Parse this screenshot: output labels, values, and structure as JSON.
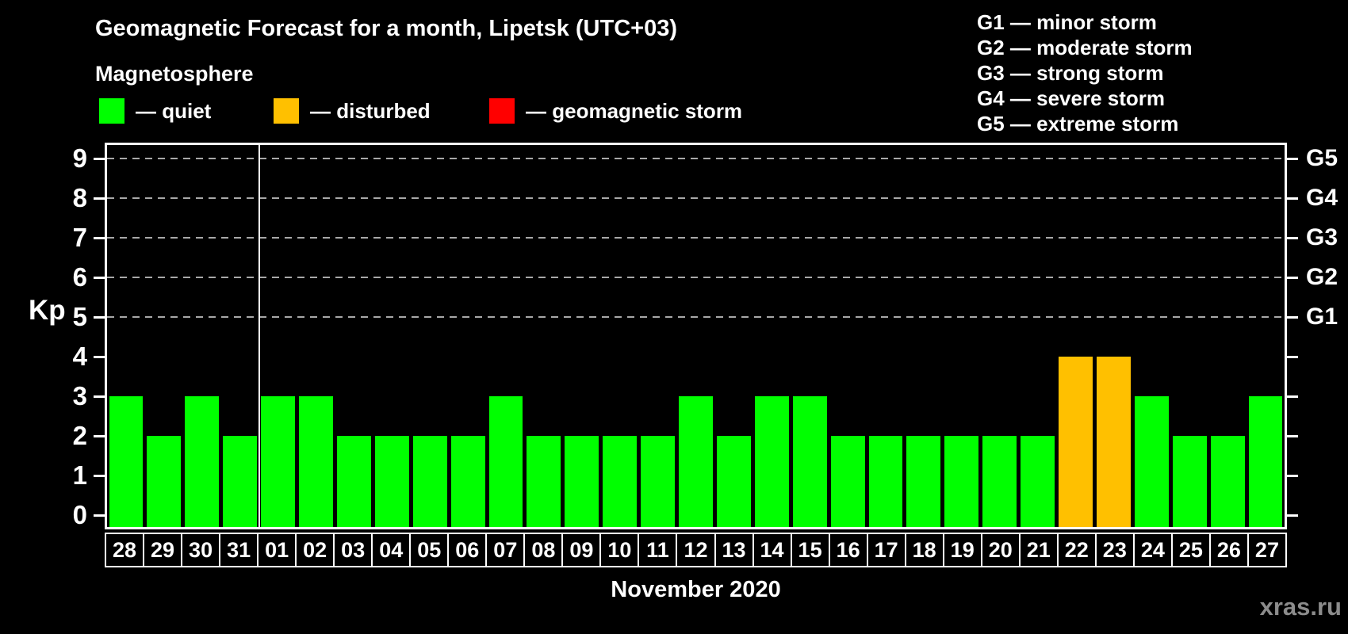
{
  "header": {
    "title": "Geomagnetic Forecast for a month, Lipetsk (UTC+03)",
    "subtitle": "Magnetosphere"
  },
  "storm_legend": [
    {
      "id": "quiet",
      "label": "— quiet",
      "color": "#00ff00"
    },
    {
      "id": "disturbed",
      "label": "— disturbed",
      "color": "#ffc000"
    },
    {
      "id": "storm",
      "label": "— geomagnetic storm",
      "color": "#ff0000"
    }
  ],
  "g_legend": [
    "G1 — minor storm",
    "G2 — moderate storm",
    "G3 — strong storm",
    "G4 — severe storm",
    "G5 — extreme storm"
  ],
  "chart_data": {
    "type": "bar",
    "title": "Geomagnetic Forecast for a month, Lipetsk (UTC+03)",
    "xlabel": "November 2020",
    "ylabel": "Kp",
    "ylim": [
      0,
      9
    ],
    "yticks": [
      0,
      1,
      2,
      3,
      4,
      5,
      6,
      7,
      8,
      9
    ],
    "grid_dashed_at_kp": [
      5,
      6,
      7,
      8,
      9
    ],
    "right_axis": [
      {
        "kp": 5,
        "label": "G1"
      },
      {
        "kp": 6,
        "label": "G2"
      },
      {
        "kp": 7,
        "label": "G3"
      },
      {
        "kp": 8,
        "label": "G4"
      },
      {
        "kp": 9,
        "label": "G5"
      }
    ],
    "month_separator_after": "31",
    "categories": [
      "28",
      "29",
      "30",
      "31",
      "01",
      "02",
      "03",
      "04",
      "05",
      "06",
      "07",
      "08",
      "09",
      "10",
      "11",
      "12",
      "13",
      "14",
      "15",
      "16",
      "17",
      "18",
      "19",
      "20",
      "21",
      "22",
      "23",
      "24",
      "25",
      "26",
      "27"
    ],
    "values": [
      3,
      2,
      3,
      2,
      3,
      3,
      2,
      2,
      2,
      2,
      3,
      2,
      2,
      2,
      2,
      3,
      2,
      3,
      3,
      2,
      2,
      2,
      2,
      2,
      2,
      4,
      4,
      3,
      2,
      2,
      3
    ],
    "bar_color_rule": {
      "quiet_max_kp": 3,
      "disturbed_kp": 4,
      "storm_min_kp": 5
    }
  },
  "footer": {
    "month_label": "November 2020",
    "watermark": "xras.ru"
  }
}
